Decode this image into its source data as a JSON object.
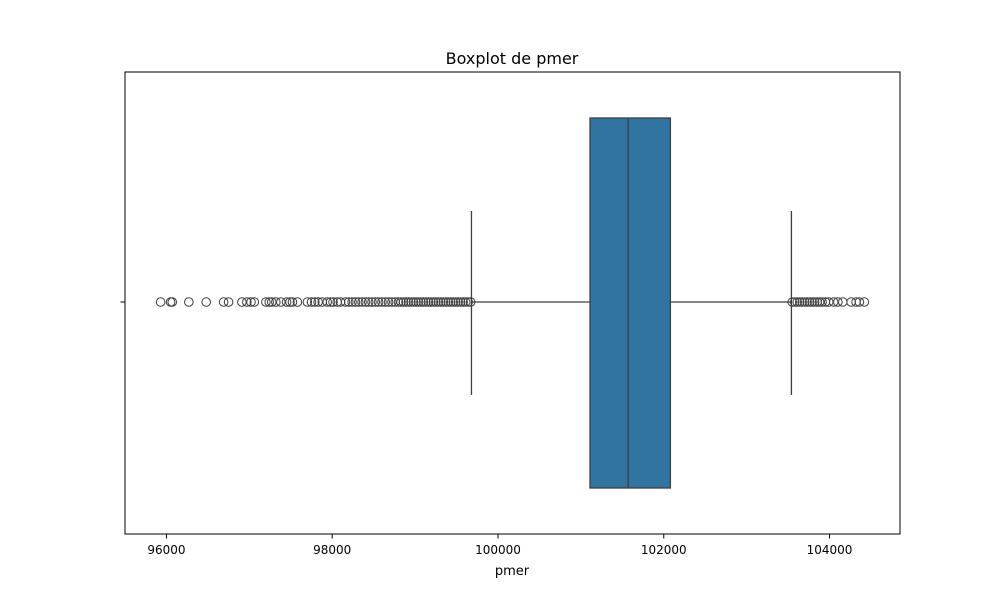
{
  "chart_data": {
    "type": "boxplot",
    "title": "Boxplot de pmer",
    "xlabel": "pmer",
    "ylabel": "",
    "orientation": "horizontal",
    "xlim": [
      95500,
      104850
    ],
    "x_ticks": [
      96000,
      98000,
      100000,
      102000,
      104000
    ],
    "x_tick_labels": [
      "96000",
      "98000",
      "100000",
      "102000",
      "104000"
    ],
    "grid": false,
    "legend": "none",
    "box": {
      "whisker_low": 99680,
      "q1": 101110,
      "median": 101570,
      "q3": 102080,
      "whisker_high": 103540
    },
    "outliers": [
      95930,
      96050,
      96070,
      96270,
      96480,
      96690,
      96750,
      96910,
      96970,
      97020,
      97060,
      97200,
      97240,
      97270,
      97320,
      97380,
      97450,
      97490,
      97520,
      97580,
      97700,
      97750,
      97790,
      97830,
      97880,
      97940,
      97980,
      98010,
      98060,
      98100,
      98160,
      98200,
      98240,
      98280,
      98320,
      98360,
      98400,
      98440,
      98480,
      98520,
      98560,
      98600,
      98640,
      98680,
      98720,
      98760,
      98800,
      98830,
      98860,
      98890,
      98920,
      98950,
      98980,
      99010,
      99040,
      99070,
      99100,
      99130,
      99160,
      99190,
      99220,
      99250,
      99280,
      99310,
      99340,
      99370,
      99400,
      99430,
      99460,
      99490,
      99520,
      99550,
      99580,
      99610,
      99640,
      99670,
      103550,
      103580,
      103610,
      103640,
      103670,
      103700,
      103730,
      103760,
      103790,
      103820,
      103850,
      103880,
      103910,
      103950,
      103990,
      104050,
      104100,
      104160,
      104260,
      104320,
      104360,
      104420
    ],
    "colors": {
      "box_fill": "#3274a1",
      "lines": "#3f3f3f",
      "outlier_stroke": "#3f3f3f"
    }
  }
}
